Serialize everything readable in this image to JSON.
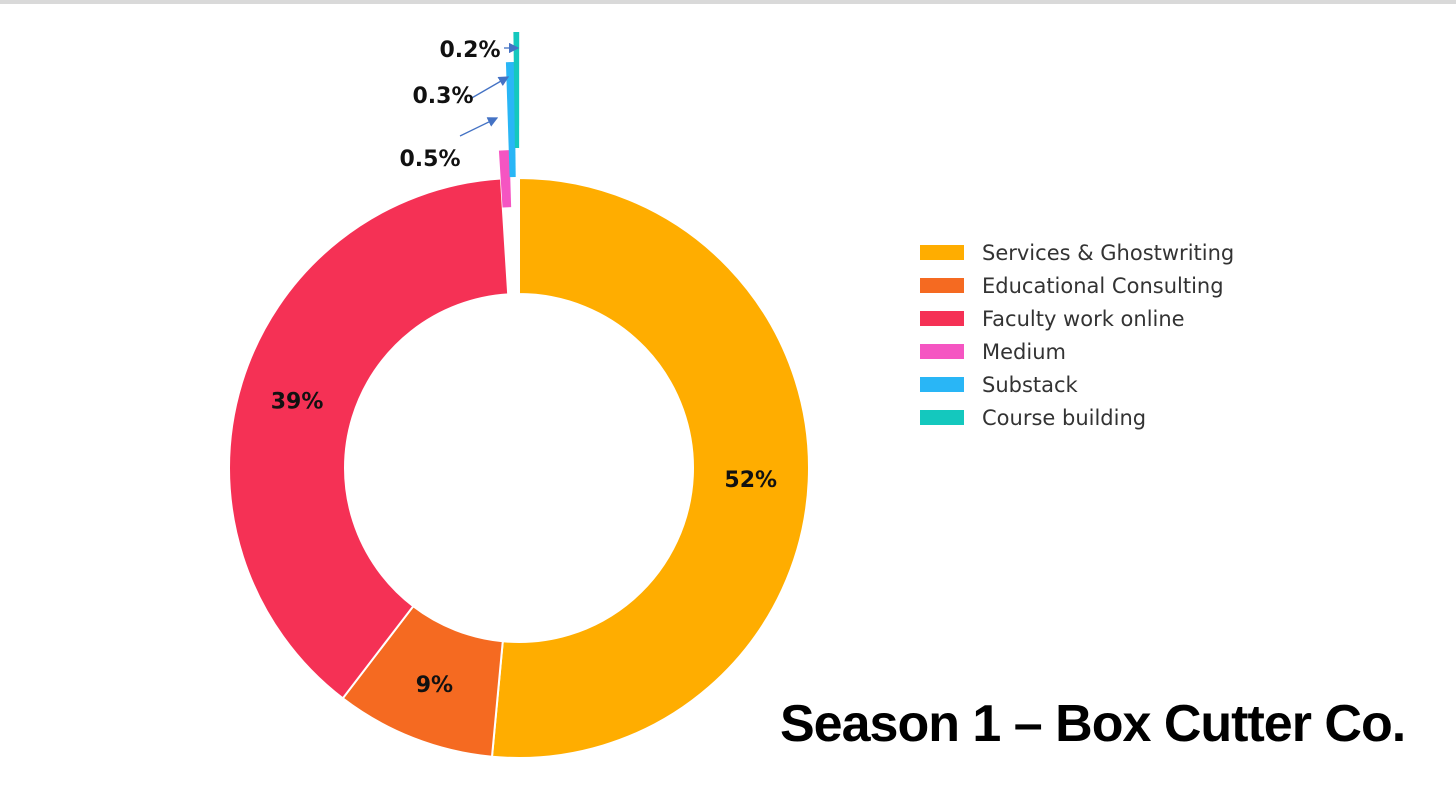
{
  "chart_data": {
    "type": "pie",
    "variant": "donut",
    "title": "Season 1 – Box Cutter Co.",
    "categories": [
      "Services & Ghostwriting",
      "Educational Consulting",
      "Faculty work online",
      "Medium",
      "Substack",
      "Course building"
    ],
    "values": [
      52,
      9,
      39,
      0.5,
      0.3,
      0.2
    ],
    "data_labels": [
      "52%",
      "9%",
      "39%",
      "0.5%",
      "0.3%",
      "0.2%"
    ],
    "colors": [
      "#FFAD00",
      "#F56A21",
      "#F53155",
      "#F555C2",
      "#29B6F6",
      "#14C8BE"
    ],
    "legend_position": "right",
    "small_slices_exploded": true
  }
}
